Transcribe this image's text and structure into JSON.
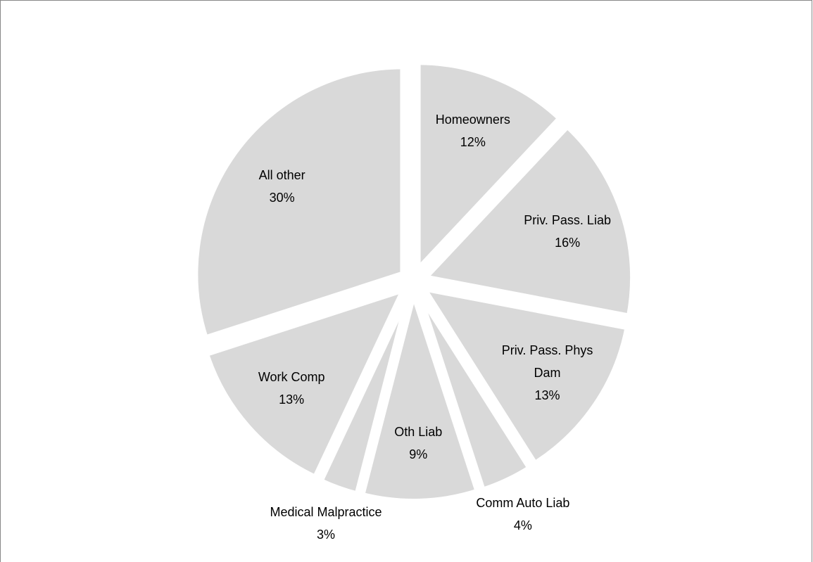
{
  "chart_data": {
    "type": "pie",
    "categories": [
      "Homeowners",
      "Priv. Pass. Liab",
      "Priv. Pass. Phys Dam",
      "Comm Auto Liab",
      "Oth Liab",
      "Medical Malpractice",
      "Work Comp",
      "All other"
    ],
    "values": [
      12,
      16,
      13,
      4,
      9,
      3,
      13,
      30
    ],
    "value_labels": [
      "12%",
      "16%",
      "13%",
      "4%",
      "9%",
      "3%",
      "13%",
      "30%"
    ],
    "color": "#d9d9d9"
  }
}
